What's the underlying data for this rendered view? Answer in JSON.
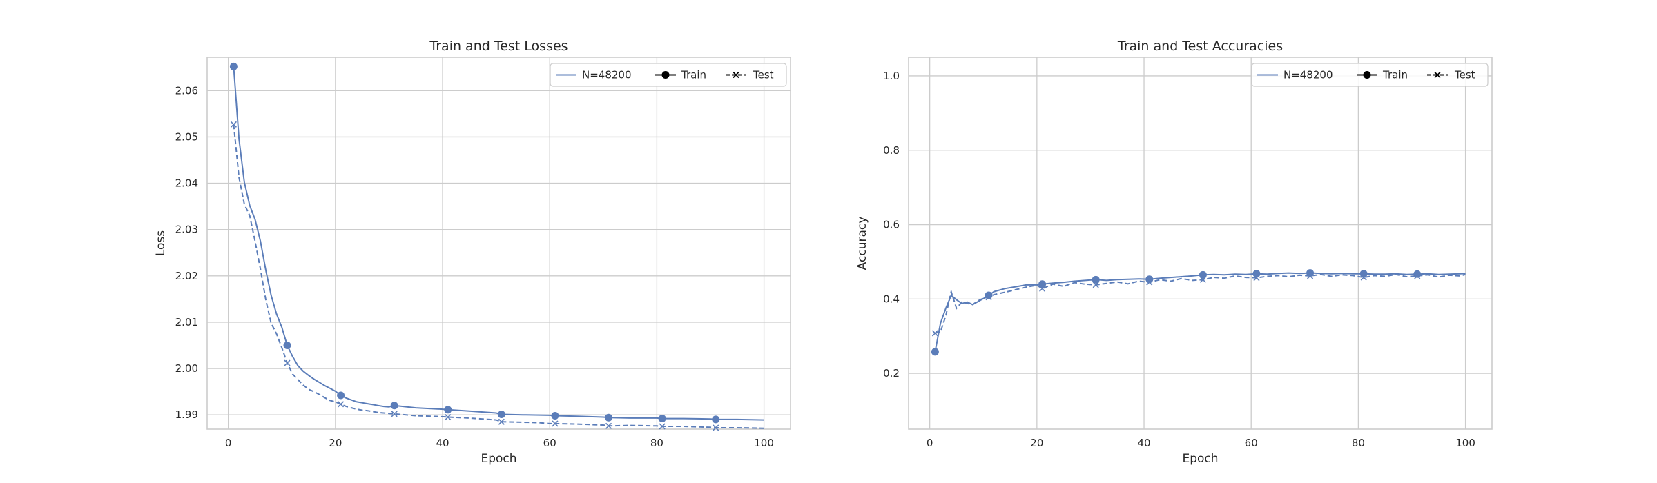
{
  "colors": {
    "series": "#5b7db9",
    "legend_marker": "#000000",
    "grid": "#cccccc",
    "text": "#262626"
  },
  "chart_data": [
    {
      "type": "line",
      "title": "Train and Test Losses",
      "xlabel": "Epoch",
      "ylabel": "Loss",
      "xlim": [
        -3.95,
        104.95
      ],
      "ylim": [
        1.9869,
        2.0672
      ],
      "xticks": [
        0,
        20,
        40,
        60,
        80,
        100
      ],
      "xtick_labels": [
        "0",
        "20",
        "40",
        "60",
        "80",
        "100"
      ],
      "yticks": [
        1.99,
        2.0,
        2.01,
        2.02,
        2.03,
        2.04,
        2.05,
        2.06
      ],
      "ytick_labels": [
        "1.99",
        "2.00",
        "2.01",
        "2.02",
        "2.03",
        "2.04",
        "2.05",
        "2.06"
      ],
      "grid": true,
      "legend": {
        "placement": "top-right",
        "entries": [
          "N=48200",
          "Train",
          "Test"
        ]
      },
      "series": [
        {
          "name": "Train",
          "style": "solid",
          "marker": "circle",
          "x": [
            1,
            2,
            3,
            4,
            5,
            6,
            7,
            8,
            9,
            10,
            11,
            12,
            13,
            14,
            15,
            16,
            17,
            18,
            19,
            20,
            21,
            22,
            23,
            24,
            25,
            26,
            27,
            28,
            29,
            30,
            31,
            35,
            40,
            41,
            45,
            50,
            51,
            55,
            60,
            61,
            65,
            70,
            71,
            75,
            80,
            81,
            85,
            90,
            91,
            95,
            100
          ],
          "y": [
            2.0652,
            2.0495,
            2.0402,
            2.0352,
            2.0322,
            2.0275,
            2.0212,
            2.0158,
            2.0118,
            2.0089,
            2.005,
            2.0026,
            2.0006,
            1.9994,
            1.9985,
            1.9977,
            1.997,
            1.9963,
            1.9957,
            1.9951,
            1.9942,
            1.9936,
            1.9932,
            1.9928,
            1.9926,
            1.9924,
            1.9922,
            1.992,
            1.9918,
            1.9917,
            1.992,
            1.9915,
            1.9912,
            1.9911,
            1.9908,
            1.9904,
            1.9901,
            1.99,
            1.9899,
            1.9898,
            1.9897,
            1.9895,
            1.9894,
            1.9893,
            1.9893,
            1.9892,
            1.9892,
            1.9891,
            1.989,
            1.989,
            1.9889
          ],
          "marker_x": [
            1,
            11,
            21,
            31,
            41,
            51,
            61,
            71,
            81,
            91
          ]
        },
        {
          "name": "Test",
          "style": "dashed",
          "marker": "x",
          "x": [
            1,
            2,
            3,
            4,
            5,
            6,
            7,
            8,
            9,
            10,
            11,
            12,
            13,
            14,
            15,
            16,
            17,
            18,
            19,
            20,
            21,
            22,
            23,
            24,
            25,
            26,
            27,
            28,
            29,
            30,
            31,
            35,
            40,
            41,
            45,
            50,
            51,
            55,
            58,
            60,
            61,
            65,
            70,
            71,
            75,
            80,
            81,
            85,
            90,
            91,
            95,
            100
          ],
          "y": [
            2.0527,
            2.0412,
            2.0355,
            2.033,
            2.0275,
            2.0215,
            2.0148,
            2.0098,
            2.0075,
            2.0045,
            2.0012,
            1.9988,
            1.9976,
            1.9964,
            1.9955,
            1.995,
            1.9944,
            1.9937,
            1.9931,
            1.9928,
            1.9923,
            1.9918,
            1.9915,
            1.9912,
            1.991,
            1.9909,
            1.9907,
            1.9905,
            1.9904,
            1.9903,
            1.9902,
            1.9898,
            1.9896,
            1.9895,
            1.9893,
            1.9889,
            1.9885,
            1.9884,
            1.9883,
            1.9881,
            1.9881,
            1.988,
            1.9878,
            1.9876,
            1.9877,
            1.9876,
            1.9875,
            1.9875,
            1.9873,
            1.9872,
            1.9872,
            1.9871
          ],
          "marker_x": [
            1,
            11,
            21,
            31,
            41,
            51,
            61,
            71,
            81,
            91
          ]
        }
      ]
    },
    {
      "type": "line",
      "title": "Train and Test Accuracies",
      "xlabel": "Epoch",
      "ylabel": "Accuracy",
      "xlim": [
        -3.95,
        104.95
      ],
      "ylim": [
        0.05,
        1.05
      ],
      "xticks": [
        0,
        20,
        40,
        60,
        80,
        100
      ],
      "xtick_labels": [
        "0",
        "20",
        "40",
        "60",
        "80",
        "100"
      ],
      "yticks": [
        0.2,
        0.4,
        0.6,
        0.8,
        1.0
      ],
      "ytick_labels": [
        "0.2",
        "0.4",
        "0.6",
        "0.8",
        "1.0"
      ],
      "grid": true,
      "legend": {
        "placement": "top-right",
        "entries": [
          "N=48200",
          "Train",
          "Test"
        ]
      },
      "series": [
        {
          "name": "Train",
          "style": "solid",
          "marker": "circle",
          "x": [
            1,
            2,
            3,
            4,
            5,
            6,
            7,
            8,
            9,
            10,
            11,
            12,
            14,
            16,
            18,
            20,
            21,
            23,
            25,
            27,
            29,
            31,
            33,
            35,
            37,
            39,
            41,
            43,
            45,
            47,
            49,
            51,
            53,
            55,
            57,
            59,
            61,
            63,
            65,
            67,
            69,
            71,
            73,
            75,
            77,
            79,
            81,
            83,
            85,
            87,
            89,
            91,
            93,
            95,
            97,
            99,
            100
          ],
          "y": [
            0.258,
            0.335,
            0.375,
            0.41,
            0.398,
            0.388,
            0.392,
            0.385,
            0.393,
            0.401,
            0.41,
            0.42,
            0.428,
            0.433,
            0.438,
            0.438,
            0.44,
            0.443,
            0.445,
            0.448,
            0.45,
            0.452,
            0.45,
            0.452,
            0.453,
            0.454,
            0.453,
            0.456,
            0.458,
            0.46,
            0.462,
            0.465,
            0.466,
            0.465,
            0.467,
            0.466,
            0.468,
            0.467,
            0.469,
            0.47,
            0.469,
            0.47,
            0.469,
            0.468,
            0.469,
            0.468,
            0.468,
            0.467,
            0.467,
            0.468,
            0.466,
            0.467,
            0.468,
            0.466,
            0.467,
            0.468,
            0.469
          ],
          "marker_x": [
            1,
            11,
            21,
            31,
            41,
            51,
            61,
            71,
            81,
            91
          ]
        },
        {
          "name": "Test",
          "style": "dashed",
          "marker": "x",
          "x": [
            1,
            2,
            3,
            4,
            5,
            6,
            7,
            8,
            9,
            10,
            11,
            12,
            14,
            16,
            18,
            20,
            21,
            23,
            25,
            27,
            29,
            31,
            33,
            35,
            37,
            39,
            41,
            43,
            45,
            47,
            49,
            51,
            53,
            55,
            57,
            59,
            61,
            63,
            65,
            67,
            69,
            71,
            73,
            75,
            77,
            79,
            81,
            83,
            85,
            87,
            89,
            91,
            93,
            95,
            97,
            99,
            100
          ],
          "y": [
            0.308,
            0.312,
            0.355,
            0.42,
            0.375,
            0.392,
            0.388,
            0.385,
            0.395,
            0.402,
            0.405,
            0.412,
            0.418,
            0.425,
            0.432,
            0.437,
            0.428,
            0.44,
            0.434,
            0.444,
            0.44,
            0.438,
            0.442,
            0.446,
            0.441,
            0.448,
            0.445,
            0.452,
            0.448,
            0.455,
            0.45,
            0.452,
            0.458,
            0.456,
            0.462,
            0.458,
            0.457,
            0.461,
            0.463,
            0.46,
            0.464,
            0.462,
            0.466,
            0.461,
            0.465,
            0.463,
            0.458,
            0.463,
            0.461,
            0.466,
            0.46,
            0.462,
            0.465,
            0.459,
            0.464,
            0.462,
            0.466
          ],
          "marker_x": [
            1,
            11,
            21,
            31,
            41,
            51,
            61,
            71,
            81,
            91
          ]
        }
      ]
    }
  ]
}
